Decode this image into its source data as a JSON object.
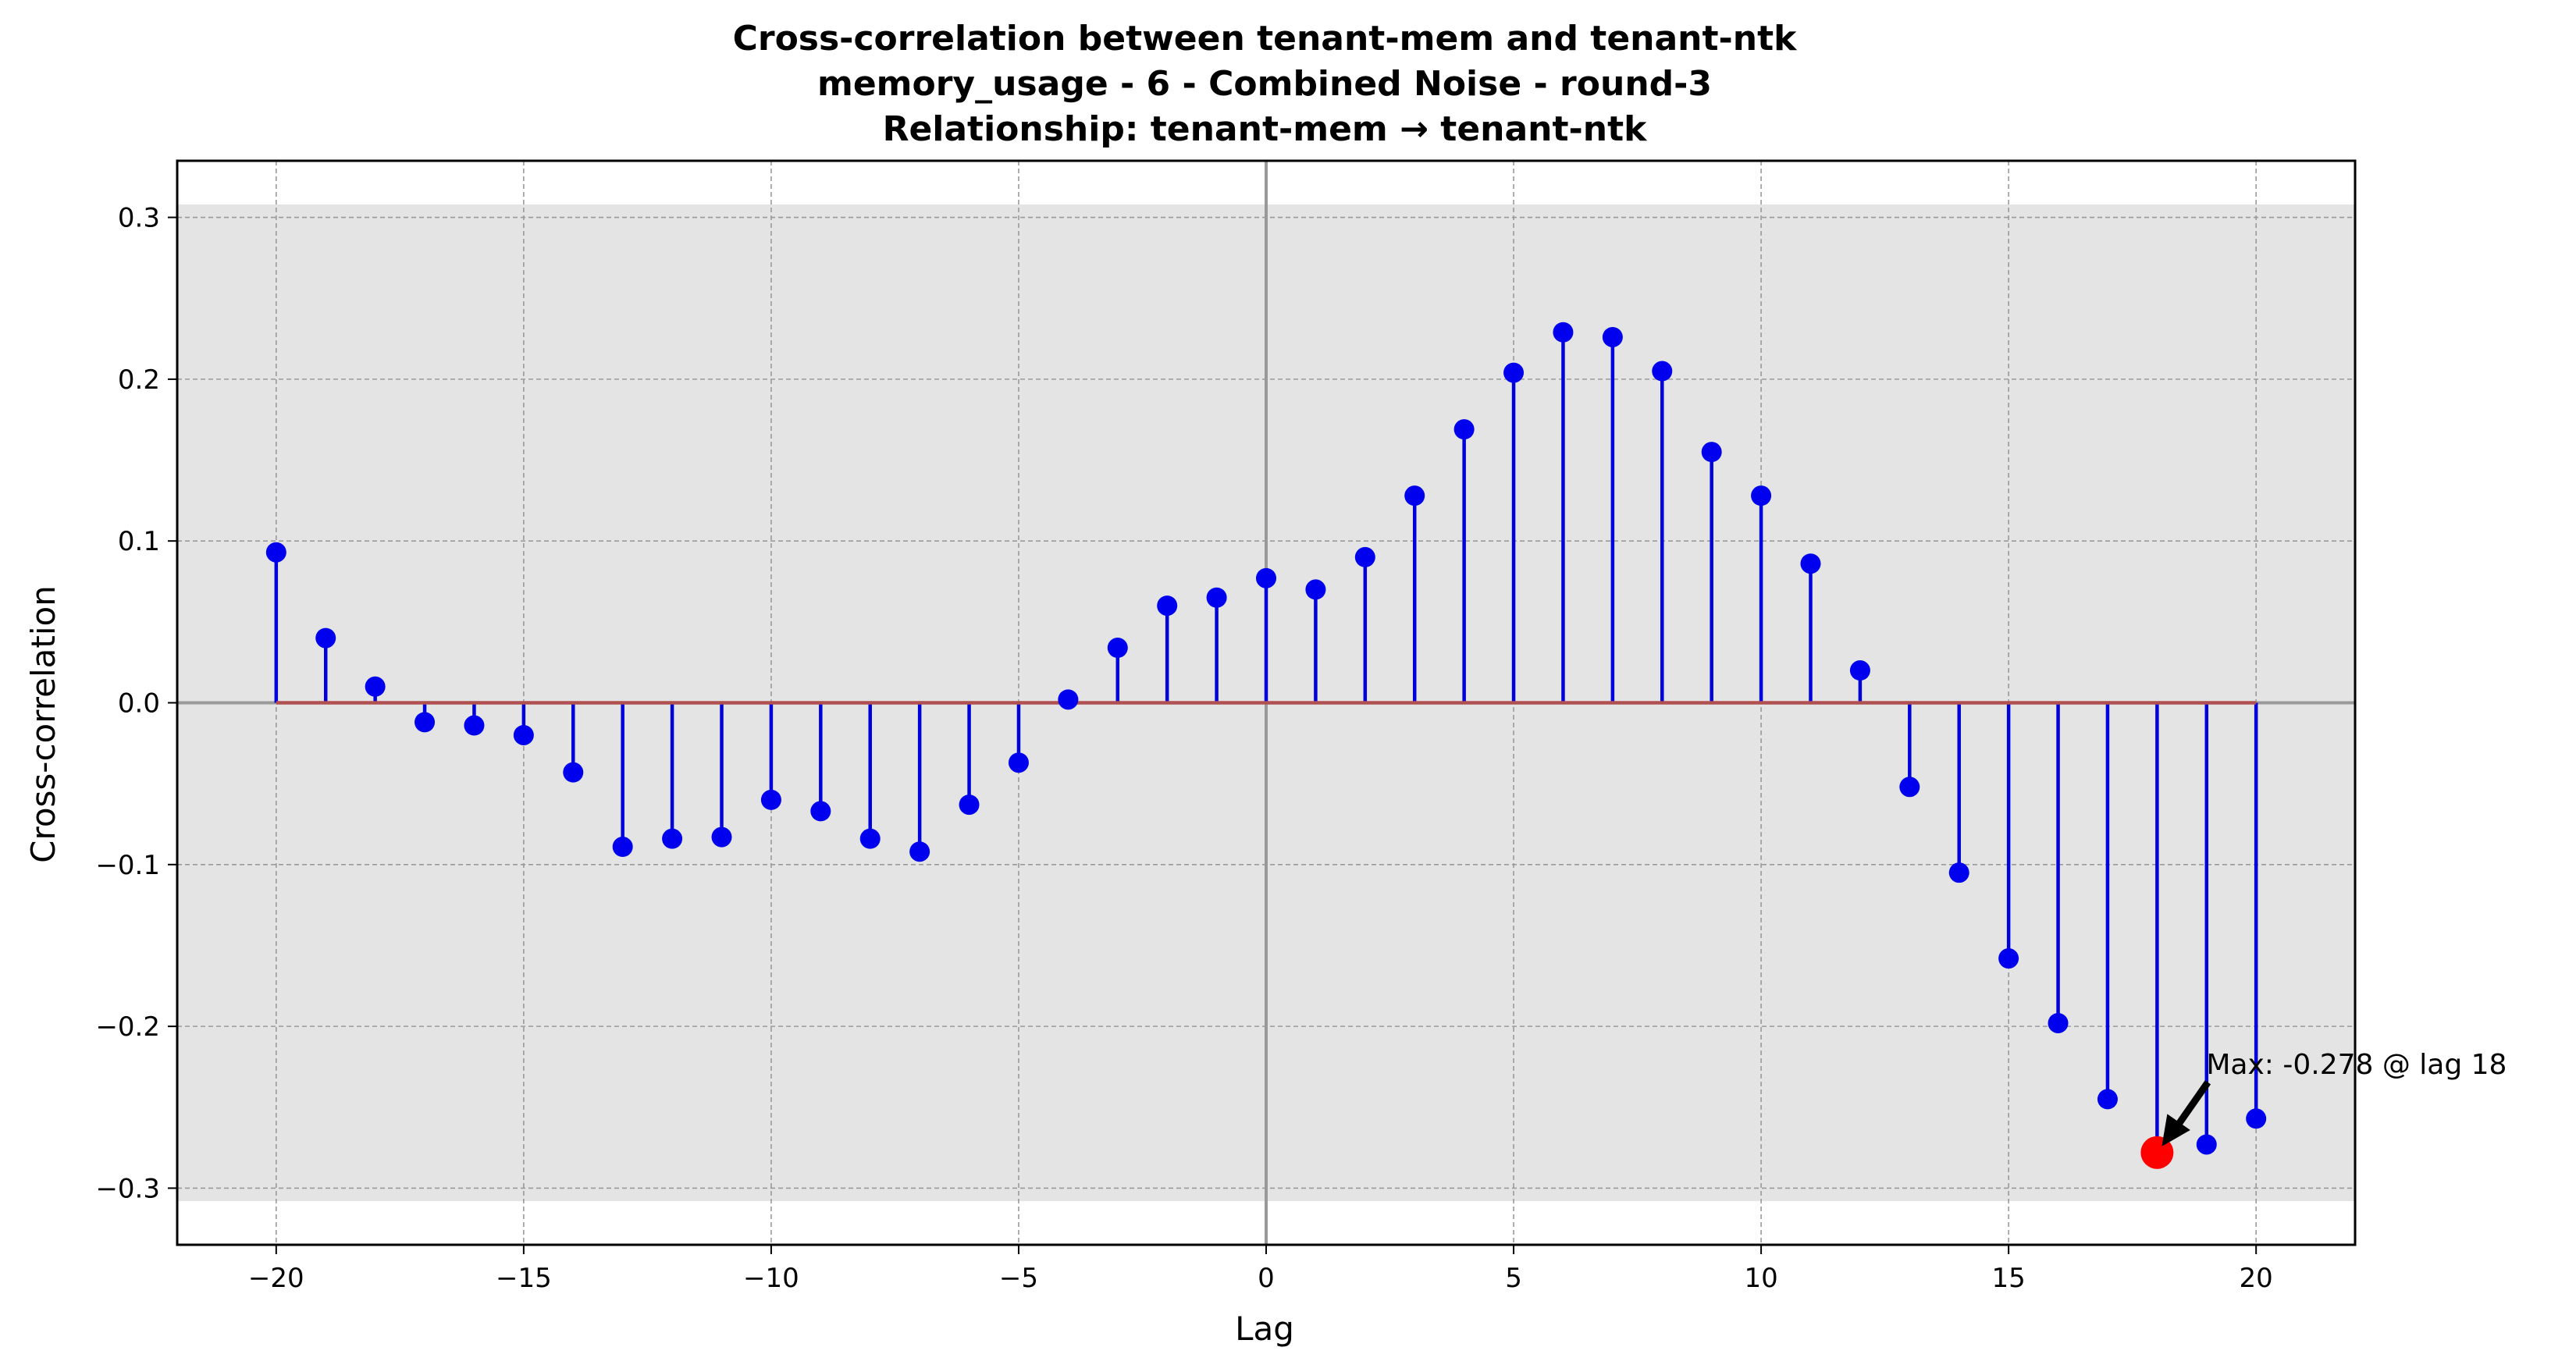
{
  "chart_data": {
    "type": "stem",
    "title": [
      "Cross-correlation between tenant-mem and tenant-ntk",
      "memory_usage - 6 - Combined Noise - round-3",
      "Relationship: tenant-mem → tenant-ntk"
    ],
    "xlabel": "Lag",
    "ylabel": "Cross-correlation",
    "xlim": [
      -22,
      22
    ],
    "ylim": [
      -0.335,
      0.335
    ],
    "xticks": [
      -20,
      -15,
      -10,
      -5,
      0,
      5,
      10,
      15,
      20
    ],
    "xtick_labels": [
      "−20",
      "−15",
      "−10",
      "−5",
      "0",
      "5",
      "10",
      "15",
      "20"
    ],
    "yticks": [
      -0.3,
      -0.2,
      -0.1,
      0.0,
      0.1,
      0.2,
      0.3
    ],
    "ytick_labels": [
      "−0.3",
      "−0.2",
      "−0.1",
      "0.0",
      "0.1",
      "0.2",
      "0.3"
    ],
    "grid": true,
    "confidence_band": [
      -0.308,
      0.308
    ],
    "lags": [
      -20,
      -19,
      -18,
      -17,
      -16,
      -15,
      -14,
      -13,
      -12,
      -11,
      -10,
      -9,
      -8,
      -7,
      -6,
      -5,
      -4,
      -3,
      -2,
      -1,
      0,
      1,
      2,
      3,
      4,
      5,
      6,
      7,
      8,
      9,
      10,
      11,
      12,
      13,
      14,
      15,
      16,
      17,
      18,
      19,
      20
    ],
    "values": [
      0.093,
      0.04,
      0.01,
      -0.012,
      -0.014,
      -0.02,
      -0.043,
      -0.089,
      -0.084,
      -0.083,
      -0.06,
      -0.067,
      -0.084,
      -0.092,
      -0.063,
      -0.037,
      0.002,
      0.034,
      0.06,
      0.065,
      0.077,
      0.07,
      0.09,
      0.128,
      0.169,
      0.204,
      0.229,
      0.226,
      0.205,
      0.155,
      0.128,
      0.086,
      0.02,
      -0.052,
      -0.105,
      -0.158,
      -0.198,
      -0.245,
      -0.278,
      -0.273,
      -0.257
    ],
    "colors": {
      "stem": "#0000dd",
      "marker": "#0000ee",
      "baseline": "#b05050",
      "highlight": "#ff0000",
      "band": "#e4e4e4",
      "grid": "#9a9a9a",
      "zero_line": "#999999"
    },
    "max_point": {
      "lag": 18,
      "value": -0.278
    },
    "annotation": {
      "text": "Max: -0.278 @ lag 18"
    }
  }
}
